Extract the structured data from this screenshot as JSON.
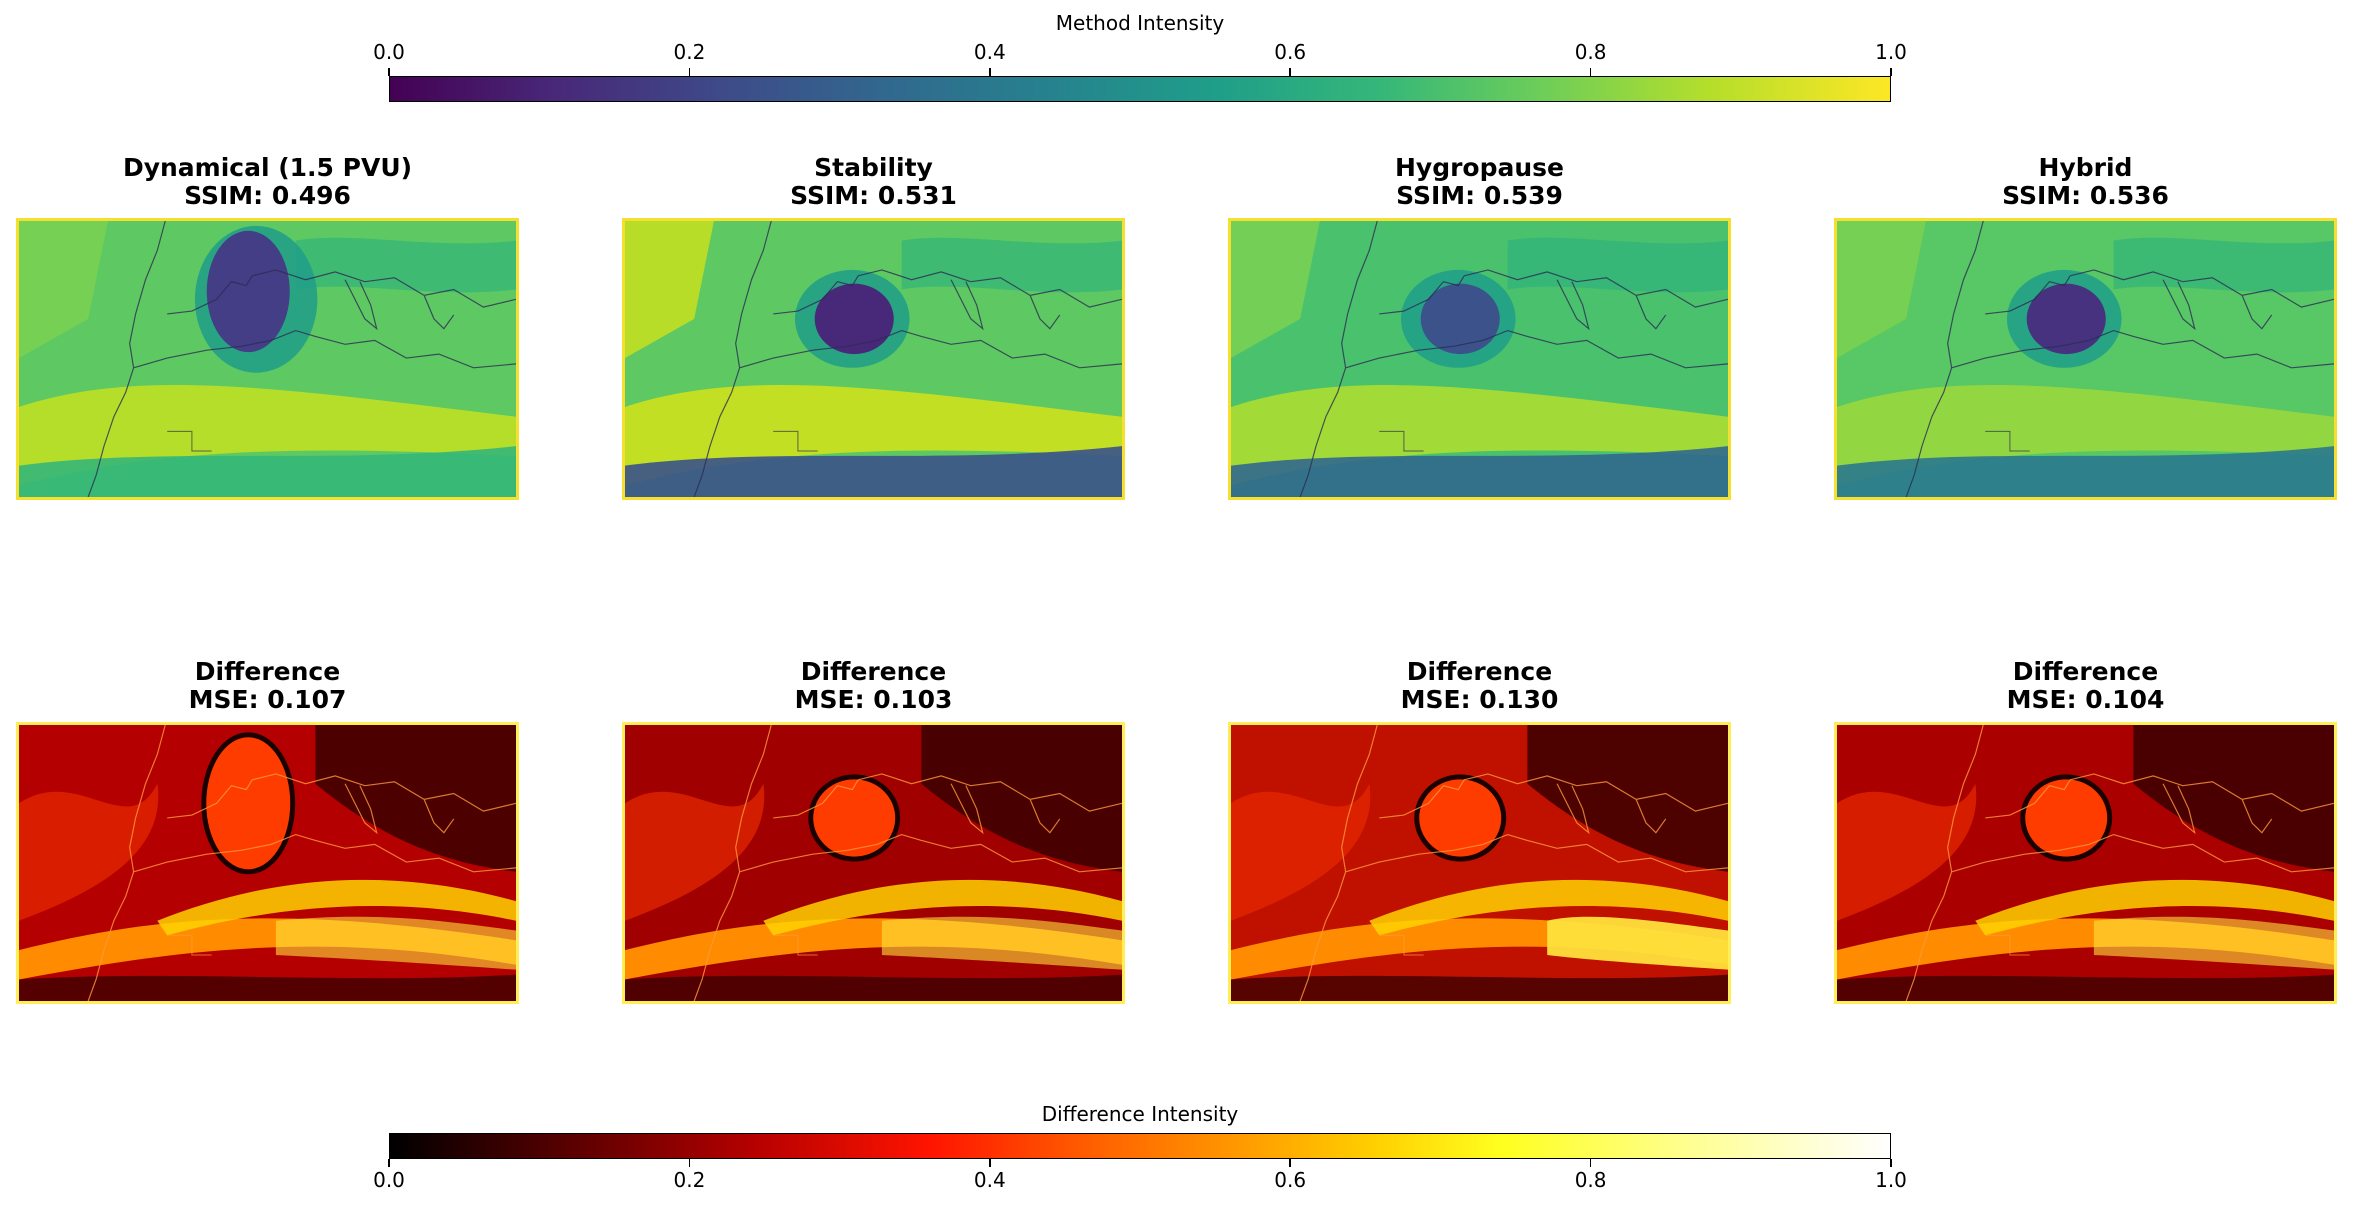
{
  "colorbars": {
    "method": {
      "label": "Method Intensity",
      "colormap": "viridis",
      "ticks": [
        "0.0",
        "0.2",
        "0.4",
        "0.6",
        "0.8",
        "1.0"
      ]
    },
    "difference": {
      "label": "Difference Intensity",
      "colormap": "hot",
      "ticks": [
        "0.0",
        "0.2",
        "0.4",
        "0.6",
        "0.8",
        "1.0"
      ]
    }
  },
  "chart_data": [
    {
      "type": "heatmap",
      "title": "Dynamical (1.5 PVU)",
      "metric": "SSIM: 0.496",
      "colormap": "viridis",
      "border_color": "#f5e031"
    },
    {
      "type": "heatmap",
      "title": "Stability",
      "metric": "SSIM: 0.531",
      "colormap": "viridis",
      "border_color": "#f5e031"
    },
    {
      "type": "heatmap",
      "title": "Hygropause",
      "metric": "SSIM: 0.539",
      "colormap": "viridis",
      "border_color": "#f5e031"
    },
    {
      "type": "heatmap",
      "title": "Hybrid",
      "metric": "SSIM: 0.536",
      "colormap": "viridis",
      "border_color": "#f5e031"
    },
    {
      "type": "heatmap",
      "title": "Difference",
      "metric": "MSE: 0.107",
      "colormap": "hot",
      "border_color": "#ffee55"
    },
    {
      "type": "heatmap",
      "title": "Difference",
      "metric": "MSE: 0.103",
      "colormap": "hot",
      "border_color": "#ffee55"
    },
    {
      "type": "heatmap",
      "title": "Difference",
      "metric": "MSE: 0.130",
      "colormap": "hot",
      "border_color": "#ffee55"
    },
    {
      "type": "heatmap",
      "title": "Difference",
      "metric": "MSE: 0.104",
      "colormap": "hot",
      "border_color": "#ffee55"
    }
  ]
}
